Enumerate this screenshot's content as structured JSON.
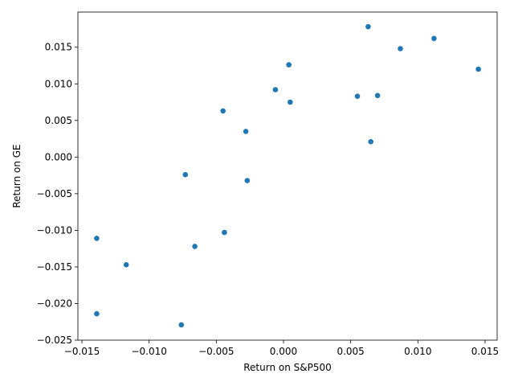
{
  "chart_data": {
    "type": "scatter",
    "title": "",
    "xlabel": "Return on S&P500",
    "ylabel": "Return on GE",
    "xlim": [
      -0.0153,
      0.0159
    ],
    "ylim": [
      -0.025,
      0.0198
    ],
    "xticks": [
      -0.015,
      -0.01,
      -0.005,
      0.0,
      0.005,
      0.01,
      0.015
    ],
    "xtick_labels": [
      "−0.015",
      "−0.010",
      "−0.005",
      "0.000",
      "0.005",
      "0.010",
      "0.015"
    ],
    "yticks": [
      -0.025,
      -0.02,
      -0.015,
      -0.01,
      -0.005,
      0.0,
      0.005,
      0.01,
      0.015
    ],
    "ytick_labels": [
      "−0.025",
      "−0.020",
      "−0.015",
      "−0.010",
      "−0.005",
      "0.000",
      "0.005",
      "0.010",
      "0.015"
    ],
    "grid": false,
    "point_color": "#1f77b4",
    "points": [
      {
        "x": 0.0063,
        "y": 0.0178
      },
      {
        "x": 0.0112,
        "y": 0.0162
      },
      {
        "x": 0.0087,
        "y": 0.0148
      },
      {
        "x": 0.0145,
        "y": 0.012
      },
      {
        "x": 0.0004,
        "y": 0.0126
      },
      {
        "x": -0.0006,
        "y": 0.0092
      },
      {
        "x": 0.0005,
        "y": 0.0075
      },
      {
        "x": 0.0055,
        "y": 0.0083
      },
      {
        "x": 0.007,
        "y": 0.0084
      },
      {
        "x": -0.0045,
        "y": 0.0063
      },
      {
        "x": -0.0028,
        "y": 0.0035
      },
      {
        "x": 0.0065,
        "y": 0.0021
      },
      {
        "x": -0.0073,
        "y": -0.0024
      },
      {
        "x": -0.0027,
        "y": -0.0032
      },
      {
        "x": -0.0044,
        "y": -0.0103
      },
      {
        "x": -0.0066,
        "y": -0.0122
      },
      {
        "x": -0.0139,
        "y": -0.0111
      },
      {
        "x": -0.0117,
        "y": -0.0147
      },
      {
        "x": -0.0139,
        "y": -0.0214
      },
      {
        "x": -0.0076,
        "y": -0.0229
      }
    ]
  }
}
